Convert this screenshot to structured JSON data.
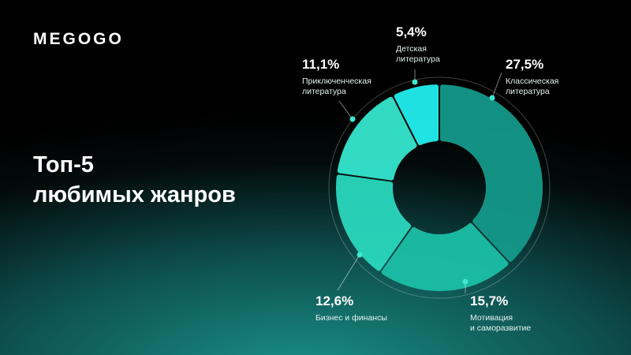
{
  "logo": "MEGOGO",
  "chart_data": {
    "type": "donut",
    "title": "Топ-5\nлюбимых жанров",
    "categories": [
      "Классическая\nлитература",
      "Мотивация\nи саморазвитие",
      "Бизнес и финансы",
      "Приключенческая\nлитература",
      "Детская\nлитература"
    ],
    "values": [
      27.5,
      15.7,
      12.6,
      11.1,
      5.4
    ],
    "value_labels": [
      "27,5%",
      "15,7%",
      "12,6%",
      "11,1%",
      "5,4%"
    ],
    "colors": [
      "#14998a",
      "#1cbfa6",
      "#2ad8bd",
      "#35e6cf",
      "#22eeee"
    ]
  }
}
